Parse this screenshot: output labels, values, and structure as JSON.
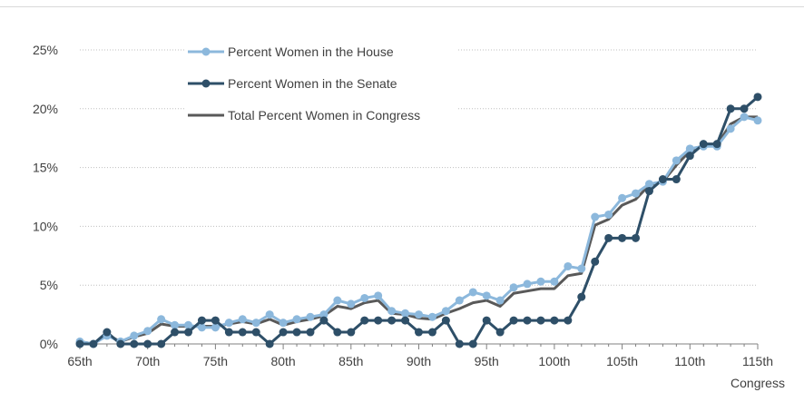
{
  "chart_data": {
    "type": "line",
    "x": [
      65,
      66,
      67,
      68,
      69,
      70,
      71,
      72,
      73,
      74,
      75,
      76,
      77,
      78,
      79,
      80,
      81,
      82,
      83,
      84,
      85,
      86,
      87,
      88,
      89,
      90,
      91,
      92,
      93,
      94,
      95,
      96,
      97,
      98,
      99,
      100,
      101,
      102,
      103,
      104,
      105,
      106,
      107,
      108,
      109,
      110,
      111,
      112,
      113,
      114,
      115
    ],
    "x_suffix": "th",
    "x_ticks": [
      "65th",
      "70th",
      "75th",
      "80th",
      "85th",
      "90th",
      "95th",
      "100th",
      "105th",
      "110th",
      "115th"
    ],
    "x_tick_values": [
      65,
      70,
      75,
      80,
      85,
      90,
      95,
      100,
      105,
      110,
      115
    ],
    "xlabel": "Congress",
    "y_ticks": [
      "0%",
      "5%",
      "10%",
      "15%",
      "20%",
      "25%"
    ],
    "y_tick_values": [
      0,
      5,
      10,
      15,
      20,
      25
    ],
    "ylim": [
      0,
      25
    ],
    "xlim": [
      65,
      115
    ],
    "grid": true,
    "legend_position": "top-left",
    "series": [
      {
        "name": "Percent Women in the House",
        "color": "#8cb8dc",
        "marker": true,
        "values": [
          0.2,
          0.0,
          0.7,
          0.2,
          0.7,
          1.1,
          2.1,
          1.6,
          1.6,
          1.4,
          1.4,
          1.8,
          2.1,
          1.8,
          2.5,
          1.8,
          2.1,
          2.3,
          2.5,
          3.7,
          3.4,
          3.9,
          4.1,
          2.8,
          2.6,
          2.5,
          2.3,
          2.8,
          3.7,
          4.4,
          4.1,
          3.7,
          4.8,
          5.1,
          5.3,
          5.3,
          6.6,
          6.4,
          10.8,
          11.0,
          12.4,
          12.8,
          13.6,
          13.8,
          15.6,
          16.6,
          16.8,
          16.8,
          18.3,
          19.3,
          19.0
        ]
      },
      {
        "name": "Percent Women in the Senate",
        "color": "#2e4f68",
        "marker": true,
        "values": [
          0,
          0,
          1,
          0,
          0,
          0,
          0,
          1,
          1,
          2,
          2,
          1,
          1,
          1,
          0,
          1,
          1,
          1,
          2,
          1,
          1,
          2,
          2,
          2,
          2,
          1,
          1,
          2,
          0,
          0,
          2,
          1,
          2,
          2,
          2,
          2,
          2,
          4,
          7,
          9,
          9,
          9,
          13,
          14,
          14,
          16,
          17,
          17,
          20,
          20,
          21
        ]
      },
      {
        "name": "Total Percent Women in Congress",
        "color": "#595959",
        "marker": false,
        "values": [
          0.2,
          0.0,
          0.8,
          0.2,
          0.6,
          0.9,
          1.7,
          1.5,
          1.5,
          1.5,
          1.5,
          1.7,
          1.9,
          1.7,
          2.1,
          1.6,
          1.9,
          2.1,
          2.4,
          3.2,
          3.0,
          3.5,
          3.7,
          2.6,
          2.5,
          2.2,
          2.1,
          2.6,
          3.0,
          3.5,
          3.7,
          3.2,
          4.3,
          4.5,
          4.7,
          4.7,
          5.8,
          6.0,
          10.1,
          10.6,
          11.8,
          12.3,
          13.5,
          13.8,
          15.2,
          16.4,
          16.9,
          16.9,
          18.7,
          19.3,
          19.3
        ]
      }
    ]
  }
}
